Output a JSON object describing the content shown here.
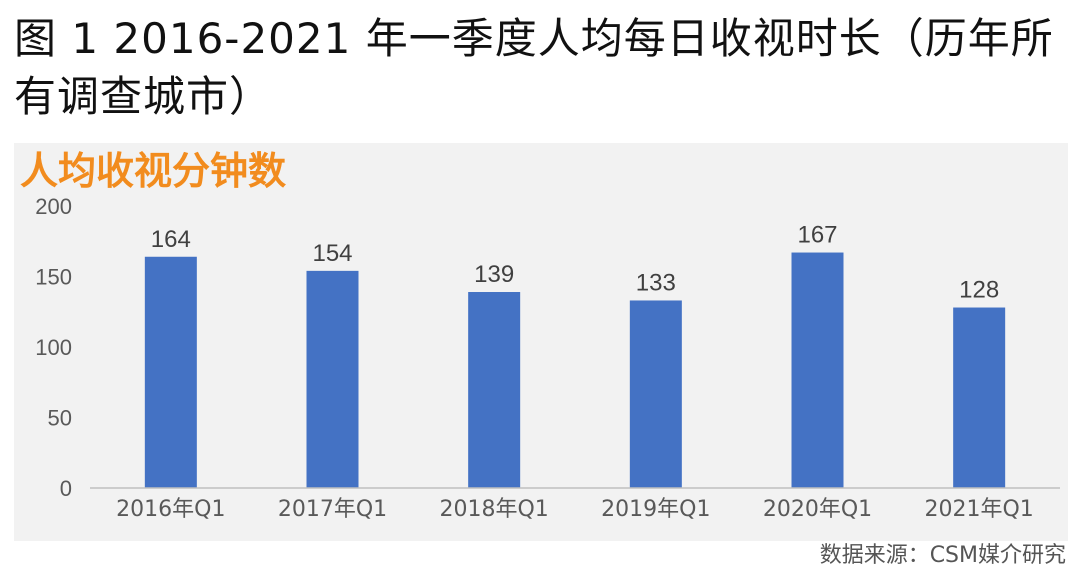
{
  "figure_title": "图 1 2016-2021 年一季度人均每日收视时长（历年所有调查城市）",
  "source_note": "数据来源：CSM媒介研究",
  "colors": {
    "bar": "#4472c4",
    "title_accent": "#f28c1e",
    "panel": "#f2f2f2"
  },
  "chart_data": {
    "type": "bar",
    "title": "人均收视分钟数",
    "categories": [
      "2016年Q1",
      "2017年Q1",
      "2018年Q1",
      "2019年Q1",
      "2020年Q1",
      "2021年Q1"
    ],
    "values": [
      164,
      154,
      139,
      133,
      167,
      128
    ],
    "y_ticks": [
      0,
      50,
      100,
      150,
      200
    ],
    "ylim": [
      0,
      200
    ],
    "xlabel": "",
    "ylabel": "",
    "grid": false,
    "legend": "none"
  }
}
